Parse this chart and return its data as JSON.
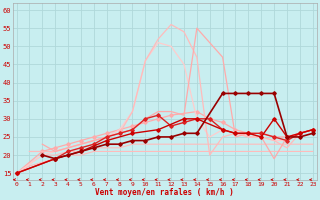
{
  "bg_color": "#c8eef0",
  "grid_color": "#b0d8da",
  "line_color_dark": "#cc0000",
  "xlabel": "Vent moyen/en rafales ( km/h )",
  "ylabel_ticks": [
    15,
    20,
    25,
    30,
    35,
    40,
    45,
    50,
    55,
    60
  ],
  "xticks": [
    0,
    1,
    2,
    3,
    4,
    5,
    6,
    7,
    8,
    9,
    10,
    11,
    12,
    13,
    14,
    15,
    16,
    17,
    18,
    19,
    20,
    21,
    22,
    23
  ],
  "ylim": [
    13,
    62
  ],
  "xlim": [
    -0.3,
    23.3
  ],
  "series": [
    {
      "x": [
        0,
        1,
        2,
        3,
        4,
        5,
        6,
        7,
        8,
        9,
        10,
        11,
        12,
        13,
        14,
        15,
        16,
        17,
        18,
        19,
        20,
        21,
        22,
        23
      ],
      "y": [
        15,
        17,
        18,
        19,
        20,
        20,
        21,
        21,
        21,
        21,
        21,
        21,
        21,
        21,
        21,
        21,
        21,
        21,
        21,
        21,
        21,
        21,
        21,
        21
      ],
      "color": "#ffbbbb",
      "lw": 0.8,
      "marker": null,
      "zorder": 1
    },
    {
      "x": [
        0,
        2,
        3,
        4,
        5,
        6,
        7,
        8,
        9,
        10,
        11,
        12,
        13,
        14,
        15,
        16,
        17,
        18,
        19,
        20,
        21,
        22,
        23
      ],
      "y": [
        15,
        20,
        20,
        21,
        21,
        22,
        22,
        22,
        23,
        23,
        23,
        23,
        23,
        23,
        23,
        23,
        23,
        23,
        23,
        23,
        23,
        23,
        23
      ],
      "color": "#ffbbbb",
      "lw": 0.8,
      "marker": null,
      "zorder": 1
    },
    {
      "x": [
        0,
        2,
        3,
        4,
        5,
        6,
        7,
        8,
        9,
        10,
        11,
        12,
        14,
        15,
        16,
        17,
        18,
        19,
        20,
        21,
        22,
        23
      ],
      "y": [
        15,
        21,
        22,
        23,
        24,
        25,
        26,
        27,
        28,
        29,
        30,
        31,
        32,
        30,
        29,
        27,
        26,
        26,
        25,
        25,
        26,
        27
      ],
      "color": "#ffaaaa",
      "lw": 0.9,
      "marker": "D",
      "zorder": 2
    },
    {
      "x": [
        0,
        2,
        3,
        4,
        5,
        6,
        7,
        8,
        9,
        10,
        11,
        12,
        13,
        14,
        15,
        16,
        17,
        18,
        19,
        20,
        21,
        22,
        23
      ],
      "y": [
        15,
        20,
        21,
        22,
        23,
        24,
        25,
        27,
        32,
        46,
        51,
        50,
        45,
        30,
        25,
        27,
        26,
        25,
        25,
        24,
        24,
        26,
        27
      ],
      "color": "#ffcccc",
      "lw": 0.9,
      "marker": null,
      "zorder": 2
    },
    {
      "x": [
        1,
        3,
        4,
        5,
        6,
        7,
        8,
        9,
        10,
        11,
        12,
        13,
        14,
        15,
        16,
        17,
        18,
        19,
        20,
        21,
        22,
        23
      ],
      "y": [
        21,
        21,
        22,
        23,
        24,
        25,
        26,
        32,
        46,
        52,
        56,
        54,
        47,
        20,
        25,
        26,
        25,
        25,
        24,
        22,
        26,
        27
      ],
      "color": "#ffbbbb",
      "lw": 0.9,
      "marker": null,
      "zorder": 2
    },
    {
      "x": [
        2,
        3,
        4,
        5,
        6,
        7,
        8,
        9,
        10,
        11,
        12,
        13,
        14,
        15,
        16,
        17,
        18,
        19,
        20,
        21,
        22,
        23
      ],
      "y": [
        23,
        21,
        22,
        23,
        24,
        25,
        26,
        27,
        30,
        32,
        32,
        31,
        55,
        51,
        47,
        25,
        26,
        25,
        19,
        25,
        26,
        27
      ],
      "color": "#ffaaaa",
      "lw": 0.9,
      "marker": null,
      "zorder": 2
    },
    {
      "x": [
        0,
        3,
        4,
        5,
        6,
        7,
        8,
        9,
        10,
        11,
        12,
        13,
        14,
        15,
        16,
        17,
        18,
        19,
        20,
        21,
        22,
        23
      ],
      "y": [
        15,
        19,
        21,
        22,
        23,
        25,
        26,
        27,
        30,
        31,
        28,
        29,
        30,
        30,
        27,
        26,
        26,
        26,
        25,
        24,
        26,
        27
      ],
      "color": "#dd2222",
      "lw": 1.0,
      "marker": "D",
      "zorder": 3
    },
    {
      "x": [
        0,
        3,
        5,
        7,
        9,
        11,
        13,
        14,
        16,
        17,
        18,
        19,
        20,
        21,
        22,
        23
      ],
      "y": [
        15,
        19,
        21,
        24,
        26,
        27,
        30,
        30,
        27,
        26,
        26,
        25,
        30,
        25,
        26,
        27
      ],
      "color": "#cc0000",
      "lw": 1.0,
      "marker": "D",
      "zorder": 3
    },
    {
      "x": [
        2,
        3,
        4,
        5,
        6,
        7,
        8,
        9,
        10,
        11,
        12,
        13,
        14,
        16,
        17,
        18,
        19,
        20,
        21,
        22,
        23
      ],
      "y": [
        20,
        19,
        20,
        21,
        22,
        23,
        23,
        24,
        24,
        25,
        25,
        26,
        26,
        37,
        37,
        37,
        37,
        37,
        25,
        25,
        26
      ],
      "color": "#990000",
      "lw": 1.2,
      "marker": "D",
      "zorder": 4
    }
  ]
}
